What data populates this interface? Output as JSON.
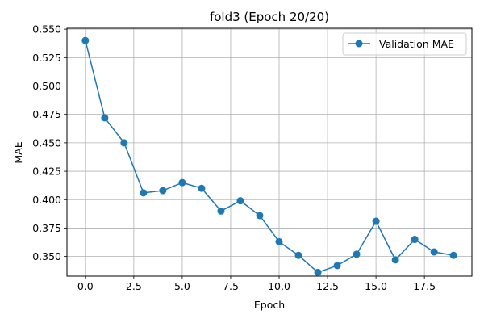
{
  "chart_data": {
    "type": "line",
    "title": "fold3 (Epoch 20/20)",
    "xlabel": "Epoch",
    "ylabel": "MAE",
    "xlim": [
      -0.95,
      19.95
    ],
    "ylim": [
      0.3327,
      0.5508
    ],
    "xticks": [
      0.0,
      2.5,
      5.0,
      7.5,
      10.0,
      12.5,
      15.0,
      17.5
    ],
    "xtick_labels": [
      "0.0",
      "2.5",
      "5.0",
      "7.5",
      "10.0",
      "12.5",
      "15.0",
      "17.5"
    ],
    "yticks": [
      0.35,
      0.375,
      0.4,
      0.425,
      0.45,
      0.475,
      0.5,
      0.525,
      0.55
    ],
    "ytick_labels": [
      "0.350",
      "0.375",
      "0.400",
      "0.425",
      "0.450",
      "0.475",
      "0.500",
      "0.525",
      "0.550"
    ],
    "grid": true,
    "legend_position": "top-right",
    "series": [
      {
        "name": "Validation MAE",
        "color": "#1f77b4",
        "marker": "circle",
        "x": [
          0,
          1,
          2,
          3,
          4,
          5,
          6,
          7,
          8,
          9,
          10,
          11,
          12,
          13,
          14,
          15,
          16,
          17,
          18,
          19
        ],
        "y": [
          0.54,
          0.472,
          0.45,
          0.406,
          0.408,
          0.415,
          0.41,
          0.39,
          0.399,
          0.386,
          0.363,
          0.351,
          0.336,
          0.342,
          0.352,
          0.381,
          0.347,
          0.365,
          0.354,
          0.351
        ]
      }
    ]
  }
}
